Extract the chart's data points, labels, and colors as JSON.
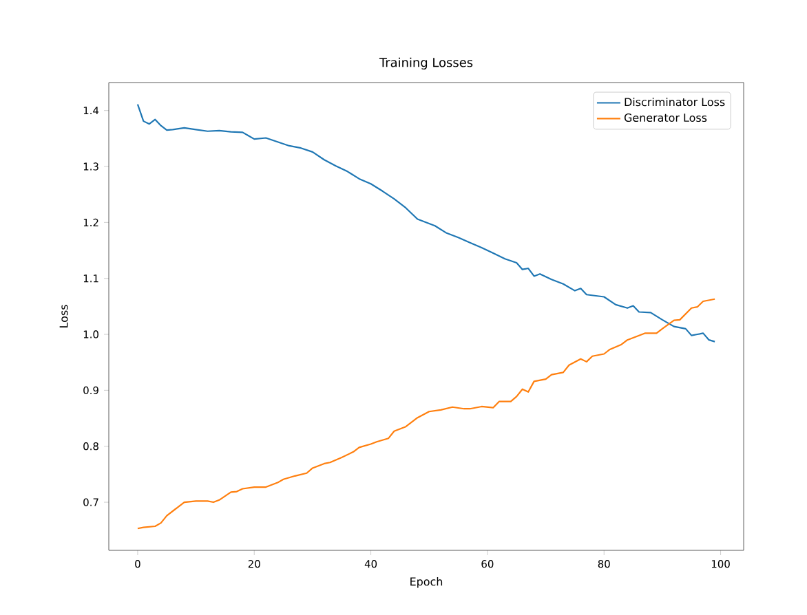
{
  "chart_data": {
    "type": "line",
    "title": "Training Losses",
    "xlabel": "Epoch",
    "ylabel": "Loss",
    "xlim": [
      -4.95,
      103.95
    ],
    "ylim": [
      0.614,
      1.45
    ],
    "xticks": [
      0,
      20,
      40,
      60,
      80,
      100
    ],
    "yticks": [
      0.7,
      0.8,
      0.9,
      {
        "value": 1.0,
        "label": "1.0"
      },
      1.1,
      1.2,
      1.3,
      1.4
    ],
    "legend": "top right",
    "grid": false,
    "marker": "none",
    "line_style": "solid",
    "series": [
      {
        "name": "Discriminator Loss",
        "color": "#1f77b4",
        "x": [
          0,
          1,
          2,
          3,
          4,
          5,
          6,
          8,
          10,
          12,
          14,
          16,
          18,
          19,
          20,
          22,
          26,
          28,
          30,
          32,
          34,
          36,
          38,
          40,
          42,
          44,
          46,
          48,
          51,
          53,
          55,
          57,
          59,
          61,
          63,
          65,
          66,
          67,
          68,
          69,
          71,
          73,
          75,
          76,
          77,
          80,
          82,
          84,
          85,
          86,
          88,
          90,
          92,
          94,
          95,
          96,
          97,
          98,
          99
        ],
        "values": [
          1.411,
          1.381,
          1.376,
          1.384,
          1.373,
          1.365,
          1.366,
          1.369,
          1.366,
          1.363,
          1.364,
          1.362,
          1.361,
          1.355,
          1.349,
          1.351,
          1.337,
          1.333,
          1.326,
          1.312,
          1.301,
          1.291,
          1.278,
          1.269,
          1.256,
          1.242,
          1.226,
          1.206,
          1.194,
          1.181,
          1.173,
          1.164,
          1.155,
          1.145,
          1.135,
          1.128,
          1.116,
          1.118,
          1.104,
          1.108,
          1.098,
          1.09,
          1.078,
          1.082,
          1.071,
          1.067,
          1.053,
          1.047,
          1.051,
          1.04,
          1.039,
          1.026,
          1.014,
          1.01,
          0.998,
          1.0,
          1.002,
          0.99,
          0.987
        ]
      },
      {
        "name": "Generator Loss",
        "color": "#ff7f0e",
        "x": [
          0,
          1,
          3,
          4,
          5,
          7,
          8,
          10,
          12,
          13,
          14,
          16,
          17,
          18,
          20,
          22,
          24,
          25,
          27,
          29,
          30,
          32,
          33,
          35,
          37,
          38,
          40,
          41,
          43,
          44,
          46,
          48,
          50,
          52,
          54,
          56,
          57,
          59,
          61,
          62,
          64,
          65,
          66,
          67,
          68,
          70,
          71,
          73,
          74,
          76,
          77,
          78,
          80,
          81,
          83,
          84,
          86,
          87,
          89,
          90,
          92,
          93,
          95,
          96,
          97,
          99
        ],
        "values": [
          0.653,
          0.655,
          0.657,
          0.663,
          0.676,
          0.692,
          0.7,
          0.702,
          0.702,
          0.7,
          0.704,
          0.718,
          0.719,
          0.724,
          0.727,
          0.727,
          0.735,
          0.741,
          0.747,
          0.752,
          0.761,
          0.769,
          0.771,
          0.78,
          0.79,
          0.798,
          0.804,
          0.808,
          0.814,
          0.827,
          0.835,
          0.851,
          0.862,
          0.865,
          0.87,
          0.867,
          0.867,
          0.871,
          0.869,
          0.88,
          0.88,
          0.889,
          0.902,
          0.897,
          0.916,
          0.92,
          0.928,
          0.932,
          0.945,
          0.956,
          0.951,
          0.961,
          0.965,
          0.973,
          0.982,
          0.99,
          0.998,
          1.002,
          1.002,
          1.01,
          1.025,
          1.026,
          1.047,
          1.049,
          1.059,
          1.063
        ]
      }
    ]
  }
}
